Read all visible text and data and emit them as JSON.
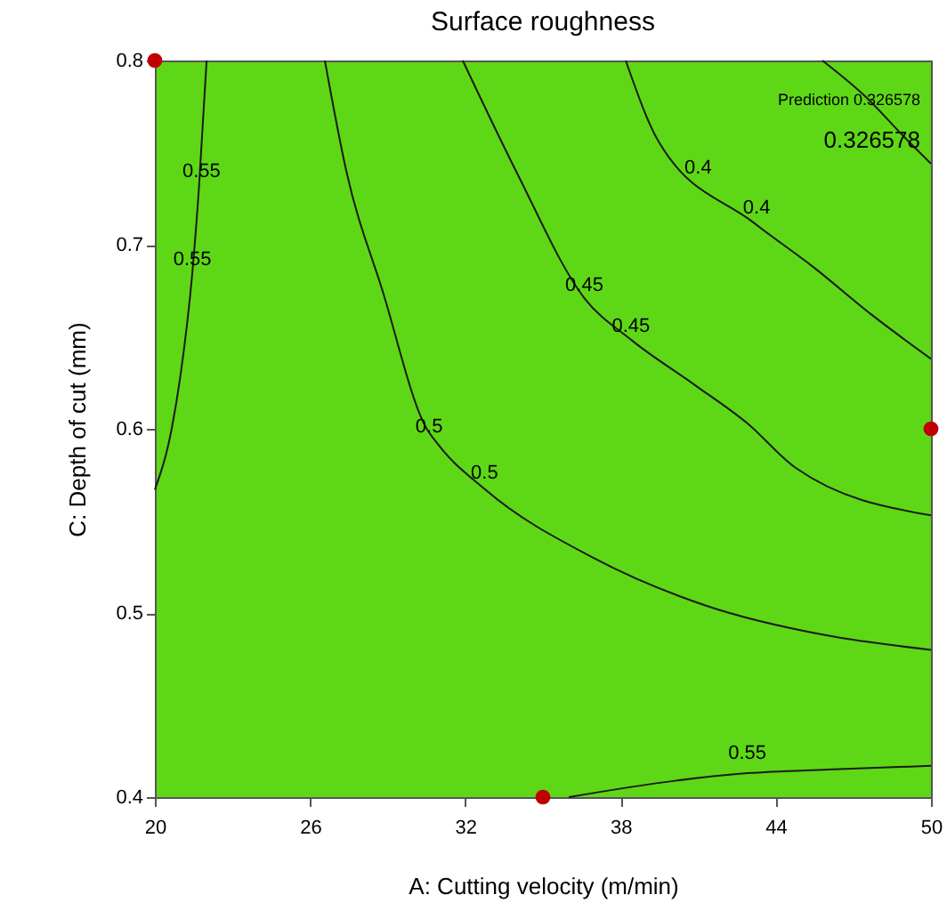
{
  "chart_data": {
    "type": "line",
    "title": "Surface roughness",
    "xlabel": "A: Cutting velocity (m/min)",
    "ylabel": "C: Depth of cut (mm)",
    "xlim": [
      20,
      50
    ],
    "xticks": [
      20,
      26,
      32,
      38,
      44,
      50
    ],
    "ylim": [
      0.4,
      0.8
    ],
    "yticks": [
      0.4,
      0.5,
      0.6,
      0.7,
      0.8
    ],
    "grid": false,
    "series": [
      {
        "color": "#1a1a1a",
        "x": [
          22.0,
          21.7,
          21.45,
          21.0,
          20.65,
          20.0
        ],
        "values": [
          0.8,
          0.73,
          0.685,
          0.63,
          0.6,
          0.567
        ]
      },
      {
        "color": "#1a1a1a",
        "x": [
          26.57,
          27.4,
          28.8,
          30.47,
          30.98,
          32.77,
          36.94,
          41.3,
          45.9,
          50.0
        ],
        "values": [
          0.8,
          0.74,
          0.675,
          0.601,
          0.591,
          0.567,
          0.53,
          0.504,
          0.488,
          0.48
        ]
      },
      {
        "color": "#1a1a1a",
        "x": [
          31.9,
          33.96,
          36.6,
          38.44,
          40.85,
          42.9,
          44.75,
          50.0
        ],
        "values": [
          0.8,
          0.74,
          0.671,
          0.648,
          0.624,
          0.603,
          0.579,
          0.553
        ]
      },
      {
        "color": "#1a1a1a",
        "x": [
          38.2,
          39.47,
          43.14,
          45.44,
          47.7,
          50.0
        ],
        "values": [
          0.8,
          0.756,
          0.712,
          0.688,
          0.662,
          0.638
        ]
      },
      {
        "color": "#1a1a1a",
        "x": [
          45.8,
          47.5,
          49.0,
          50.0
        ],
        "values": [
          0.8,
          0.78,
          0.758,
          0.744
        ]
      },
      {
        "color": "#1a1a1a",
        "x": [
          36.0,
          40.16,
          42.9,
          46.0,
          50.0
        ],
        "values": [
          0.4,
          0.409,
          0.413,
          0.415,
          0.417
        ]
      },
      {
        "type": "scatter",
        "color": "#c00000",
        "x": [
          20,
          50,
          35
        ],
        "values": [
          0.8,
          0.6,
          0.4
        ]
      }
    ],
    "annotations": [
      {
        "text": "0.55",
        "x": 21.8,
        "y": 0.732
      },
      {
        "text": "0.55",
        "x": 21.45,
        "y": 0.684
      },
      {
        "text": "0.5",
        "x": 30.6,
        "y": 0.593
      },
      {
        "text": "0.5",
        "x": 32.74,
        "y": 0.568
      },
      {
        "text": "0.45",
        "x": 36.6,
        "y": 0.67
      },
      {
        "text": "0.45",
        "x": 38.4,
        "y": 0.648
      },
      {
        "text": "0.4",
        "x": 41.0,
        "y": 0.734
      },
      {
        "text": "0.4",
        "x": 43.26,
        "y": 0.712
      },
      "Prediction 0.326578",
      "0.326578",
      {
        "text": "0.55",
        "x": 42.9,
        "y": 0.416
      }
    ]
  }
}
